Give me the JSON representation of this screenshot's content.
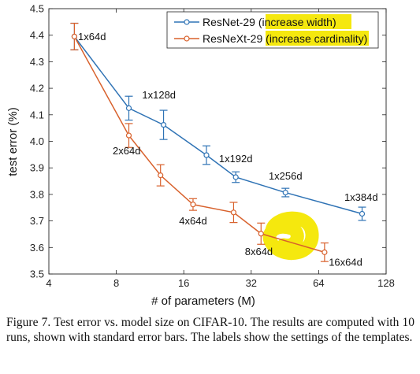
{
  "chart_data": {
    "type": "line",
    "xlabel": "# of parameters (M)",
    "ylabel": "test error (%)",
    "x_scale": "log2",
    "xlim": [
      4,
      128
    ],
    "ylim": [
      3.5,
      4.5
    ],
    "x_ticks": [
      4,
      8,
      16,
      32,
      64,
      128
    ],
    "y_ticks": [
      3.5,
      3.6,
      3.7,
      3.8,
      3.9,
      4.0,
      4.1,
      4.2,
      4.3,
      4.4,
      4.5
    ],
    "x_tick_labels": [
      "4",
      "8",
      "16",
      "32",
      "64",
      "128"
    ],
    "y_tick_labels": [
      "3.5",
      "3.6",
      "3.7",
      "3.8",
      "3.9",
      "4.0",
      "4.1",
      "4.2",
      "4.3",
      "4.4",
      "4.5"
    ],
    "grid": false,
    "legend_position": "top-right",
    "series": [
      {
        "name": "ResNet-29",
        "legend_note": "(increase width)",
        "color": "#2f73b5",
        "points": [
          {
            "x": 5.2,
            "y": 4.395,
            "err": 0.05
          },
          {
            "x": 9.1,
            "y": 4.125,
            "err": 0.045
          },
          {
            "x": 13.0,
            "y": 4.062,
            "err": 0.055
          },
          {
            "x": 20.2,
            "y": 3.948,
            "err": 0.035
          },
          {
            "x": 27.3,
            "y": 3.865,
            "err": 0.02
          },
          {
            "x": 45.5,
            "y": 3.807,
            "err": 0.016
          },
          {
            "x": 100.0,
            "y": 3.727,
            "err": 0.025
          }
        ]
      },
      {
        "name": "ResNeXt-29",
        "legend_note": "(increase cardinality)",
        "color": "#d8612c",
        "points": [
          {
            "x": 5.2,
            "y": 4.395,
            "err": 0.05
          },
          {
            "x": 9.1,
            "y": 4.022,
            "err": 0.045
          },
          {
            "x": 12.6,
            "y": 3.872,
            "err": 0.04
          },
          {
            "x": 17.6,
            "y": 3.762,
            "err": 0.022
          },
          {
            "x": 26.7,
            "y": 3.732,
            "err": 0.038
          },
          {
            "x": 35.4,
            "y": 3.652,
            "err": 0.04
          },
          {
            "x": 68.0,
            "y": 3.582,
            "err": 0.035
          }
        ]
      }
    ],
    "annotations": [
      {
        "text": "1x64d",
        "x": 5.4,
        "y": 4.395,
        "anchor": "start"
      },
      {
        "text": "1x128d",
        "x": 12.4,
        "y": 4.175,
        "anchor": "middle"
      },
      {
        "text": "2x64d",
        "x": 8.9,
        "y": 3.965,
        "anchor": "middle"
      },
      {
        "text": "1x192d",
        "x": 27.3,
        "y": 3.935,
        "anchor": "middle"
      },
      {
        "text": "1x256d",
        "x": 45.5,
        "y": 3.87,
        "anchor": "middle"
      },
      {
        "text": "1x384d",
        "x": 99.0,
        "y": 3.79,
        "anchor": "middle"
      },
      {
        "text": "4x64d",
        "x": 17.6,
        "y": 3.7,
        "anchor": "middle"
      },
      {
        "text": "8x64d",
        "x": 34.6,
        "y": 3.585,
        "anchor": "middle"
      },
      {
        "text": "16x64d",
        "x": 71.0,
        "y": 3.545,
        "anchor": "start"
      }
    ],
    "highlight_color": "#f5e80e"
  },
  "caption": "Figure 7. Test error vs. model size on CIFAR-10. The results are computed with 10 runs, shown with standard error bars. The labels show the settings of the templates."
}
